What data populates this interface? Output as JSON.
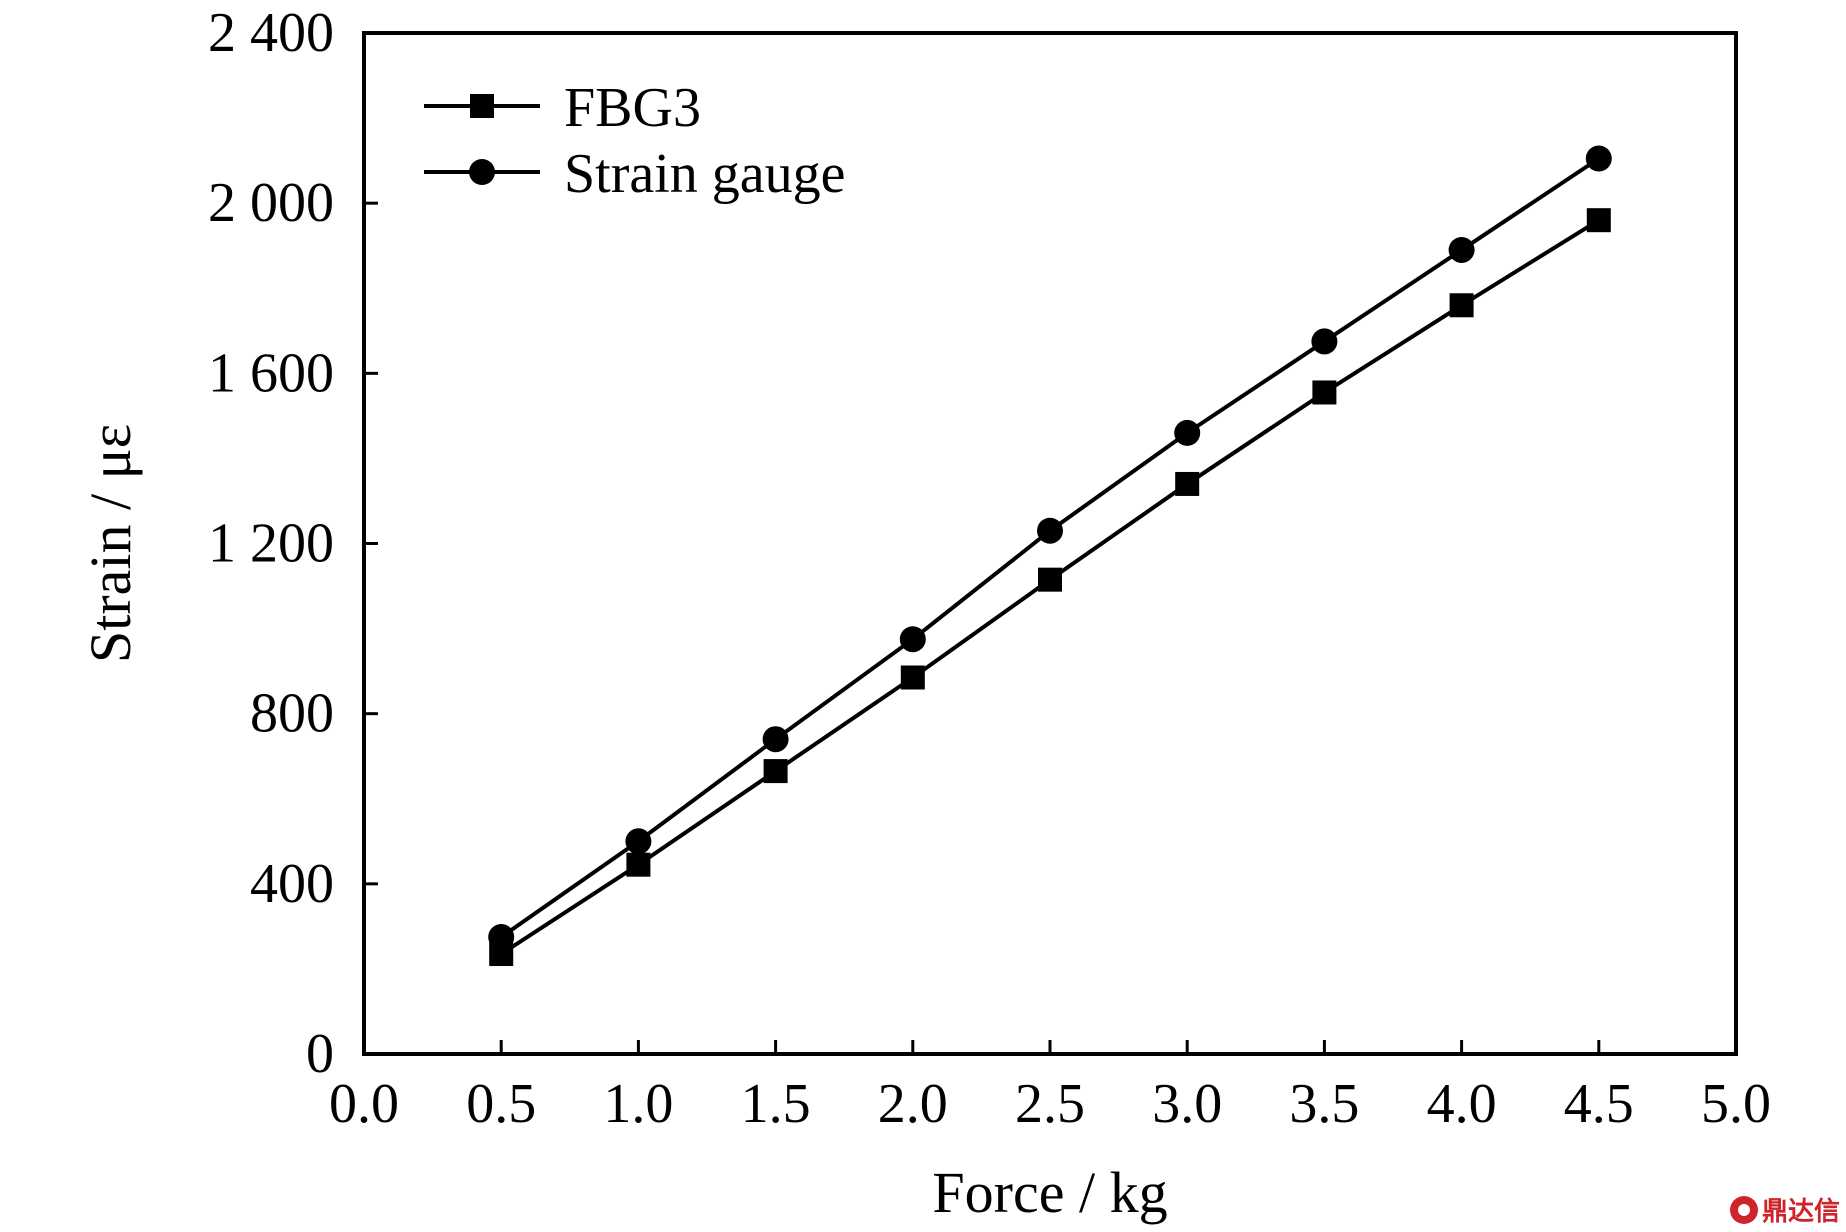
{
  "chart_data": {
    "type": "line",
    "xlabel": "Force / kg",
    "ylabel": "Strain / με",
    "xlim": [
      0.0,
      5.0
    ],
    "ylim": [
      0,
      2400
    ],
    "x_ticks": [
      "0.0",
      "0.5",
      "1.0",
      "1.5",
      "2.0",
      "2.5",
      "3.0",
      "3.5",
      "4.0",
      "4.5",
      "5.0"
    ],
    "x_tick_values": [
      0.0,
      0.5,
      1.0,
      1.5,
      2.0,
      2.5,
      3.0,
      3.5,
      4.0,
      4.5,
      5.0
    ],
    "y_ticks": [
      "0",
      "400",
      "800",
      "1 200",
      "1 600",
      "2 000",
      "2 400"
    ],
    "y_tick_values": [
      0,
      400,
      800,
      1200,
      1600,
      2000,
      2400
    ],
    "x": [
      0.5,
      1.0,
      1.5,
      2.0,
      2.5,
      3.0,
      3.5,
      4.0,
      4.5
    ],
    "series": [
      {
        "name": "FBG3",
        "marker": "square",
        "values": [
          235,
          445,
          665,
          885,
          1115,
          1340,
          1555,
          1760,
          1960
        ]
      },
      {
        "name": "Strain gauge",
        "marker": "circle",
        "values": [
          275,
          500,
          740,
          975,
          1230,
          1460,
          1675,
          1890,
          2105
        ]
      }
    ],
    "legend_position": "top-left",
    "grid": false
  },
  "watermark": {
    "text": "鼎达信",
    "color": "#d0242b"
  }
}
